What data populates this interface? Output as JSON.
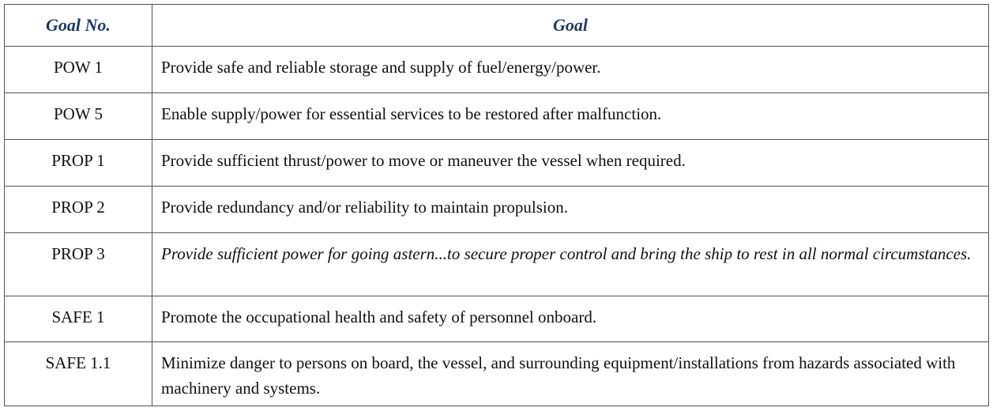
{
  "table": {
    "headers": {
      "goal_no": "Goal No.",
      "goal": "Goal"
    },
    "rows": [
      {
        "id": "POW 1",
        "goal": "Provide safe and reliable storage and supply of fuel/energy/power.",
        "italic": false
      },
      {
        "id": "POW 5",
        "goal": "Enable supply/power for essential services to be restored after malfunction.",
        "italic": false
      },
      {
        "id": "PROP 1",
        "goal": "Provide sufficient thrust/power to move or maneuver the vessel when required.",
        "italic": false
      },
      {
        "id": "PROP 2",
        "goal": "Provide redundancy and/or reliability to maintain propulsion.",
        "italic": false
      },
      {
        "id": "PROP 3",
        "goal": "Provide sufficient power for going astern...to secure proper control and bring the ship to rest in all normal circumstances.",
        "italic": true
      },
      {
        "id": "SAFE 1",
        "goal": "Promote the occupational health and safety of personnel onboard.",
        "italic": false
      },
      {
        "id": "SAFE 1.1",
        "goal": "Minimize danger to persons on board, the vessel, and surrounding equipment/installations from hazards associated with machinery and systems.",
        "italic": false
      }
    ],
    "colors": {
      "header_text": "#1f3a64",
      "border": "#555555",
      "body_text": "#111111"
    }
  }
}
